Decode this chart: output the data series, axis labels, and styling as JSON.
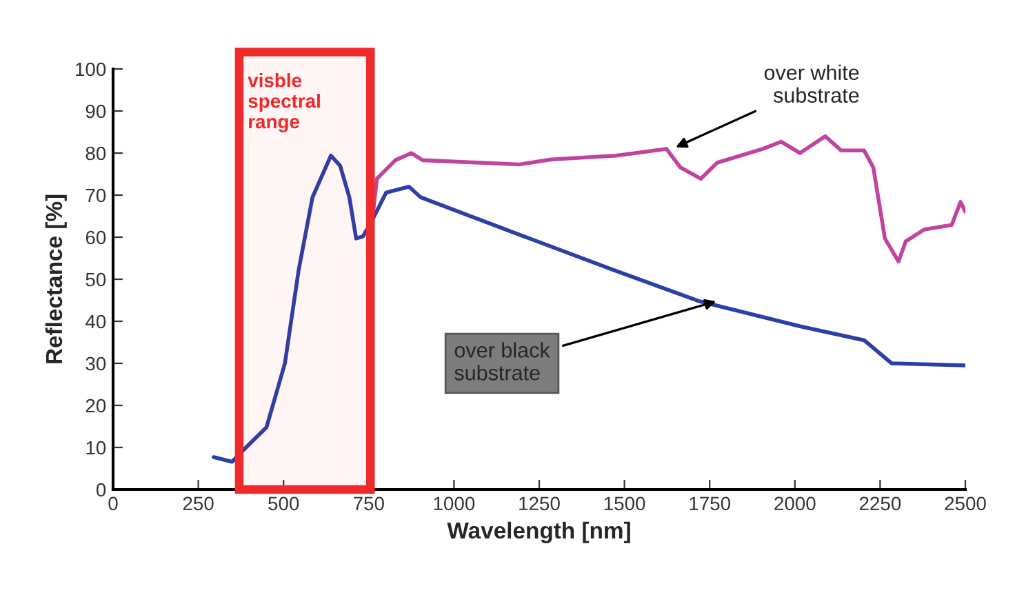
{
  "chart_data": {
    "type": "line",
    "xlabel": "Wavelength [nm]",
    "ylabel": "Reflectance [%]",
    "xlim": [
      0,
      2500
    ],
    "xticks": [
      0,
      250,
      500,
      750,
      1000,
      1250,
      1500,
      1750,
      2000,
      2250,
      2500
    ],
    "ylim": [
      0,
      100
    ],
    "yticks": [
      0,
      10,
      20,
      30,
      40,
      50,
      60,
      70,
      80,
      90,
      100
    ],
    "grid": false,
    "legend": false,
    "marker": "none",
    "line_style": "solid",
    "bands": [
      {
        "axis": "x",
        "from": 370,
        "to": 755,
        "label": "visble spectral range",
        "color": "#ee2a2a"
      }
    ],
    "series": [
      {
        "color": "#2a3fa8",
        "x": [
          295,
          349,
          396,
          450,
          504,
          544,
          585,
          639,
          666,
          693,
          713,
          733,
          760,
          801,
          868,
          902,
          1205,
          1475,
          1718,
          2015,
          2203,
          2284,
          2500
        ],
        "values": [
          7.7,
          6.6,
          10.5,
          14.8,
          30,
          52,
          69.5,
          79.4,
          77,
          69.5,
          59.7,
          60.2,
          64,
          70.6,
          72,
          69.5,
          60.2,
          52,
          44.8,
          38.8,
          35.5,
          30,
          29.5
        ]
      },
      {
        "color": "#c0449e",
        "x": [
          760,
          774,
          828,
          875,
          908,
          1192,
          1286,
          1475,
          1623,
          1664,
          1724,
          1772,
          1906,
          1960,
          2015,
          2089,
          2136,
          2203,
          2230,
          2264,
          2304,
          2325,
          2379,
          2460,
          2486,
          2500
        ],
        "values": [
          64,
          73.9,
          78.3,
          80,
          78.3,
          77.3,
          78.5,
          79.4,
          81,
          76.6,
          73.9,
          77.7,
          81,
          82.7,
          80,
          84,
          80.6,
          80.6,
          76.6,
          59.7,
          54.2,
          59,
          61.8,
          62.9,
          68.4,
          66
        ]
      }
    ],
    "annotations": [
      {
        "text": "over white\nsubstrate",
        "x": 1640,
        "y": 81
      },
      {
        "text": "over black\nsubstrate",
        "x": 1780,
        "y": 45
      }
    ]
  }
}
